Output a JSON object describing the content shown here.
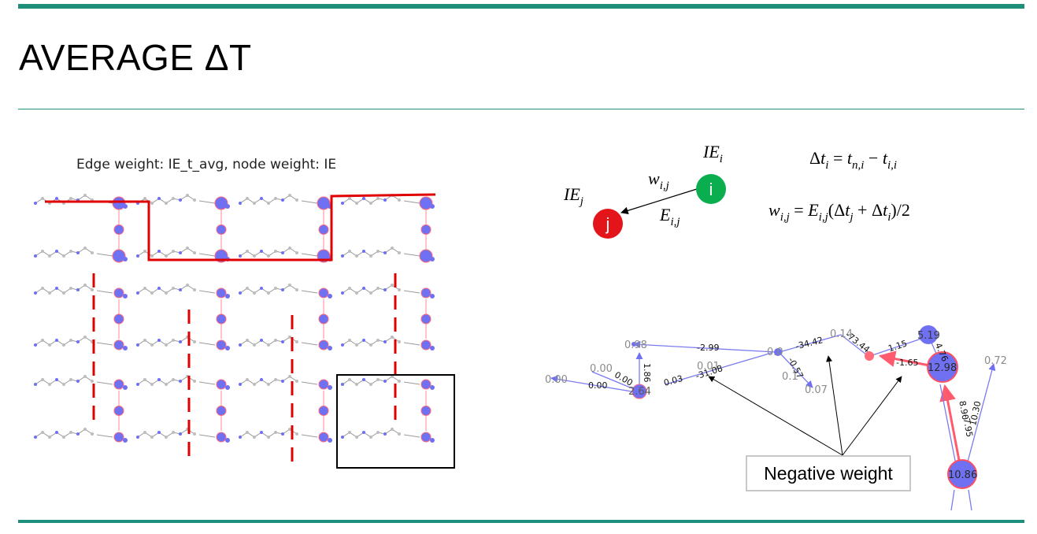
{
  "slide": {
    "title": "AVERAGE ΔT",
    "accent_color": "#1d8f7a"
  },
  "left_figure": {
    "title": "Edge weight: IE_t_avg, node weight: IE",
    "boundary_color": "#e00000",
    "highlight_box_color": "#000000"
  },
  "formula_panel": {
    "node_i": {
      "label": "i",
      "color": "#0aae4f"
    },
    "node_j": {
      "label": "j",
      "color": "#e3151b"
    },
    "IE_i": "IE_i",
    "IE_j": "IE_j",
    "w_ij": "w_i,j",
    "E_ij": "E_i,j",
    "eq1": "Δt_i = t_n,i − t_i,i",
    "eq2": "w_i,j = E_i,j(Δt_j + Δt_i)/2"
  },
  "right_graph": {
    "node_labels": [
      "0.98",
      "0.00",
      "0.00",
      "2.64",
      "0.01",
      "0.0",
      "0.14",
      "0.1",
      "0.07",
      "5.19",
      "12.98",
      "0.72",
      "10.86"
    ],
    "edge_labels": [
      "-2.99",
      "1.86",
      "0.00",
      "0.00",
      "0.03",
      "-31.08",
      "-34.42",
      "-0.57",
      "-73.44",
      "1.15",
      "4.76",
      "-1.65",
      "8.90",
      "-7.95",
      "10.30"
    ],
    "callout": "Negative weight"
  }
}
